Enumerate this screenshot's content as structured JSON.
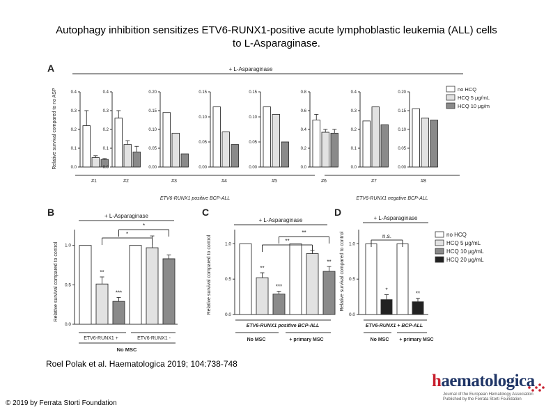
{
  "page": {
    "title_line1": "Autophagy inhibition sensitizes ETV6-RUNX1-positive acute lymphoblastic leukemia (ALL) cells",
    "title_line2": "to L-Asparaginase.",
    "citation": "Roel Polak et al. Haematologica 2019; 104:738-748",
    "copyright": "© 2019 by Ferrata Storti Foundation",
    "logo": {
      "word_prefix": "h",
      "word_rest": "aematologica",
      "line1": "Journal of the European Hematology Association",
      "line2": "Published by the Ferrata Storti Foundation"
    }
  },
  "colors": {
    "no_hcq": "#ffffff",
    "hcq5": "#e2e2e2",
    "hcq10": "#8a8a8a",
    "hcq20": "#222222",
    "line": "#333333",
    "brand_blue": "#1f3566",
    "brand_red": "#c8202f"
  },
  "chart_data": [
    {
      "panel": "A",
      "type": "bar",
      "header": "+ L-Asparaginase",
      "ylabel": "Relative survival compared to no ASP",
      "legend": [
        "no HCQ",
        "HCQ 5 μg/mL",
        "HCQ 10 μg/m"
      ],
      "group_labels": [
        "ETV6-RUNX1 positive BCP-ALL",
        "ETV6-RUNX1 negative BCP-ALL"
      ],
      "subplots": [
        {
          "label": "#1",
          "ylim": [
            0,
            0.4
          ],
          "ticks": [
            "0.0",
            "0.1",
            "0.2",
            "0.3",
            "0.4"
          ],
          "values": [
            0.22,
            0.05,
            0.04
          ],
          "errors": [
            0.08,
            0.01,
            0.005
          ]
        },
        {
          "label": "#2",
          "ylim": [
            0,
            0.4
          ],
          "ticks": [
            "0.0",
            "0.1",
            "0.2",
            "0.3",
            "0.4"
          ],
          "values": [
            0.26,
            0.12,
            0.08
          ],
          "errors": [
            0.04,
            0.02,
            0.03
          ]
        },
        {
          "label": "#3",
          "ylim": [
            0,
            0.2
          ],
          "ticks": [
            "0.00",
            "0.05",
            "0.10",
            "0.15",
            "0.20"
          ],
          "values": [
            0.145,
            0.09,
            0.035
          ],
          "errors": [
            0,
            0,
            0
          ]
        },
        {
          "label": "#4",
          "ylim": [
            0,
            0.15
          ],
          "ticks": [
            "0.00",
            "0.05",
            "0.10",
            "0.15"
          ],
          "values": [
            0.12,
            0.07,
            0.045
          ],
          "errors": [
            0,
            0,
            0
          ]
        },
        {
          "label": "#5",
          "ylim": [
            0,
            0.15
          ],
          "ticks": [
            "0.00",
            "0.05",
            "0.10",
            "0.15"
          ],
          "values": [
            0.12,
            0.105,
            0.05
          ],
          "errors": [
            0,
            0,
            0
          ]
        },
        {
          "label": "#6",
          "ylim": [
            0,
            0.8
          ],
          "ticks": [
            "0.0",
            "0.2",
            "0.4",
            "0.6",
            "0.8"
          ],
          "values": [
            0.5,
            0.37,
            0.36
          ],
          "errors": [
            0.06,
            0.03,
            0.04
          ]
        },
        {
          "label": "#7",
          "ylim": [
            0,
            0.4
          ],
          "ticks": [
            "0.0",
            "0.1",
            "0.2",
            "0.3",
            "0.4"
          ],
          "values": [
            0.245,
            0.32,
            0.225
          ],
          "errors": [
            0,
            0,
            0
          ]
        },
        {
          "label": "#8",
          "ylim": [
            0,
            0.2
          ],
          "ticks": [
            "0.00",
            "0.05",
            "0.10",
            "0.15",
            "0.20"
          ],
          "values": [
            0.155,
            0.13,
            0.125
          ],
          "errors": [
            0,
            0,
            0
          ]
        }
      ]
    },
    {
      "panel": "B",
      "type": "bar",
      "header": "+ L-Asparaginase",
      "ylabel": "Relative survival compared to control",
      "ylim": [
        0,
        1.2
      ],
      "ticks": [
        "0.0",
        "0.5",
        "1.0"
      ],
      "values": [
        1.0,
        0.51,
        0.29,
        1.0,
        0.97,
        0.83
      ],
      "errors": [
        0,
        0.09,
        0.05,
        0,
        0.15,
        0.05
      ],
      "star_labels": [
        "",
        "**",
        "***",
        "",
        "",
        ""
      ],
      "group_labels": [
        "ETV6-RUNX1 +",
        "ETV6-RUNX1 -"
      ],
      "footer": "No MSC",
      "comparisons": [
        "*",
        "*"
      ]
    },
    {
      "panel": "C",
      "type": "bar",
      "header": "+ L-Asparaginase",
      "ylabel": "Relative survival compared to control",
      "ylim": [
        0,
        1.2
      ],
      "ticks": [
        "0.0",
        "0.5",
        "1.0"
      ],
      "values": [
        1.0,
        0.52,
        0.29,
        1.0,
        0.86,
        0.61
      ],
      "errors": [
        0,
        0.07,
        0.04,
        0,
        0.05,
        0.07
      ],
      "star_labels": [
        "",
        "**",
        "***",
        "",
        "",
        "**"
      ],
      "caption": "ETV6-RUNX1 positive BCP-ALL",
      "group_labels": [
        "No MSC",
        "+ primary MSC"
      ],
      "comparisons": [
        "**",
        "**"
      ]
    },
    {
      "panel": "D",
      "type": "bar",
      "header": "+ L-Asparaginase",
      "ylabel": "Relative survival compared to control",
      "ylim": [
        0,
        1.2
      ],
      "ticks": [
        "0.0",
        "0.5",
        "1.0"
      ],
      "values": [
        1.0,
        0.21,
        1.0,
        0.18
      ],
      "errors": [
        0,
        0.07,
        0,
        0.05
      ],
      "star_labels": [
        "",
        "*",
        "",
        "**"
      ],
      "caption": "ETV6-RUNX1 + BCP-ALL",
      "group_labels": [
        "No MSC",
        "+ primary MSC"
      ],
      "comparisons": [
        "n.s."
      ],
      "legend": [
        "no HCQ",
        "HCQ 5 μg/mL",
        "HCQ 10 μg/mL",
        "HCQ 20 μg/mL"
      ]
    }
  ]
}
